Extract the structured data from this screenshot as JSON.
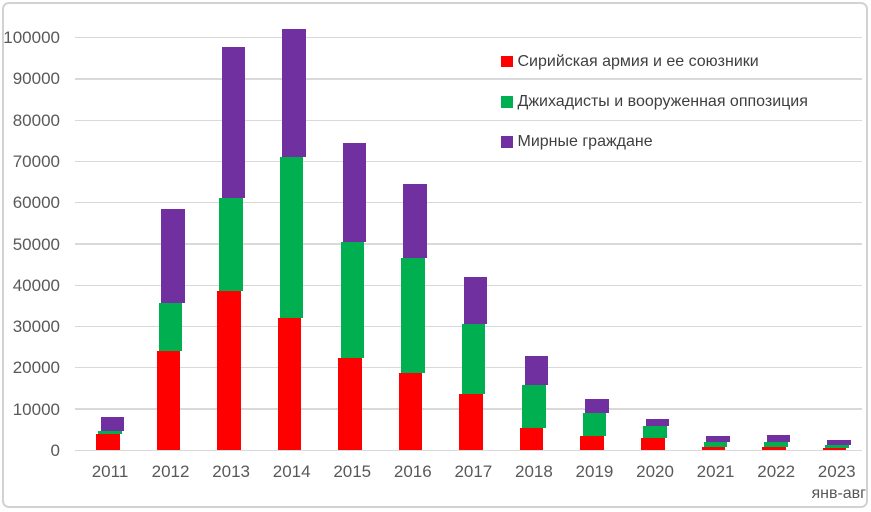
{
  "chart_data": {
    "type": "bar",
    "stacked": true,
    "title": "",
    "xlabel": "",
    "ylabel": "",
    "categories": [
      "2011",
      "2012",
      "2013",
      "2014",
      "2015",
      "2016",
      "2017",
      "2018",
      "2019",
      "2020",
      "2021",
      "2022",
      "2023"
    ],
    "x_axis_note": {
      "under_category": "2023",
      "text": "янв-авг"
    },
    "series": [
      {
        "name": "Сирийская армия и ее союзники",
        "color": "#FF0000",
        "values": [
          3900,
          24100,
          38700,
          32000,
          22400,
          18800,
          13700,
          5500,
          3500,
          2900,
          700,
          700,
          600
        ]
      },
      {
        "name": "Джихадисты и вооруженная оппозиция",
        "color": "#00B050",
        "values": [
          700,
          11500,
          22500,
          39200,
          28000,
          27900,
          16800,
          10400,
          5500,
          3000,
          1300,
          1300,
          800
        ]
      },
      {
        "name": "Мирные граждане",
        "color": "#7030A0",
        "values": [
          3400,
          22800,
          36500,
          30900,
          24100,
          17800,
          11400,
          6900,
          3500,
          1700,
          1500,
          1600,
          1200
        ]
      }
    ],
    "stack_totals": [
      8000,
      58400,
      97700,
      102100,
      74500,
      64500,
      41900,
      22800,
      12500,
      7600,
      3500,
      3600,
      2600
    ],
    "ylim": [
      0,
      100000
    ],
    "y_ticks": [
      0,
      10000,
      20000,
      30000,
      40000,
      50000,
      60000,
      70000,
      80000,
      90000,
      100000
    ],
    "grid": "horizontal",
    "legend_position": "top-right",
    "style": {
      "axis_text_color": "#595959",
      "legend_text_color": "#3f3f3f",
      "gridline_color": "#d9d9d9",
      "frame_border_color": "#d2d2d2",
      "background": "#ffffff"
    }
  }
}
